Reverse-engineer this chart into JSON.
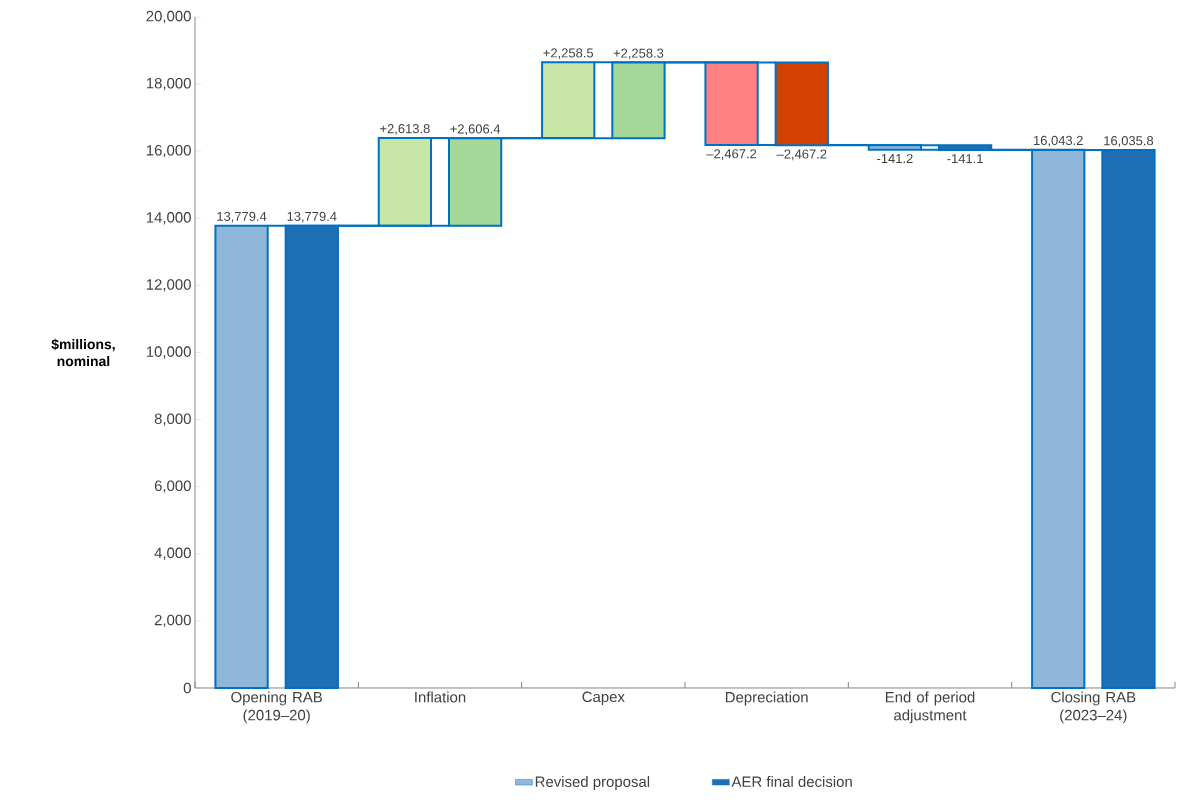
{
  "chart_data": {
    "type": "bar",
    "categories": [
      "Opening RAB (2019–20)",
      "Inflation",
      "Capex",
      "Depreciation",
      "End of period adjustment",
      "Closing RAB (2023–24)"
    ],
    "ylabel": "$millions, nominal",
    "ylim": [
      0,
      20000
    ],
    "yticks": [
      0,
      {
        "value": 2000,
        "label": "2,000"
      },
      {
        "value": 4000,
        "label": "4,000"
      },
      {
        "value": 6000,
        "label": "6,000"
      },
      {
        "value": 8000,
        "label": "8,000"
      },
      {
        "value": 10000,
        "label": "10,000"
      },
      {
        "value": 12000,
        "label": "12,000"
      },
      {
        "value": 14000,
        "label": "14,000"
      },
      {
        "value": 16000,
        "label": "16,000"
      },
      {
        "value": 18000,
        "label": "18,000"
      },
      {
        "value": 20000,
        "label": "20,000"
      }
    ],
    "series": [
      {
        "name": "Revised proposal",
        "color": "#8fb7da",
        "colors": [
          "#8fb7da",
          "#c8e7a7",
          "#c8e7a7",
          "#ff8080",
          "#8fb7da",
          "#8fb7da"
        ],
        "values": [
          13779.4,
          2613.8,
          2258.5,
          -2467.2,
          -141.2,
          16043.2
        ],
        "base": [
          0,
          13779.4,
          16393.2,
          18651.7,
          16184.5,
          0
        ],
        "value_labels": [
          "13,779.4",
          "+2,613.8",
          "+2,258.5",
          "–2,467.2",
          "-141.2",
          "16,043.2"
        ]
      },
      {
        "name": "AER final decision",
        "color": "#1f6fb5",
        "colors": [
          "#1f6fb5",
          "#a3d899",
          "#a3d899",
          "#d34100",
          "#1f6fb5",
          "#1f6fb5"
        ],
        "values": [
          13779.4,
          2606.4,
          2258.3,
          -2467.2,
          -141.1,
          16035.8
        ],
        "base": [
          0,
          13779.4,
          16385.8,
          18644.1,
          16176.9,
          0
        ],
        "value_labels": [
          "13,779.4",
          "+2,606.4",
          "+2,258.3",
          "–2,467.2",
          "-141.1",
          "16,035.8"
        ]
      }
    ],
    "legend": "bottom",
    "grid": false
  }
}
